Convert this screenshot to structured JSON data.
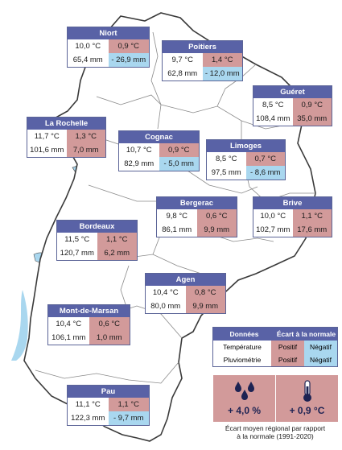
{
  "stations": [
    {
      "name": "Niort",
      "temp": "10,0 °C",
      "temp_dev": "0,9 °C",
      "temp_sign": "pos",
      "rain": "65,4 mm",
      "rain_dev": "- 26,9 mm",
      "rain_sign": "neg"
    },
    {
      "name": "Poitiers",
      "temp": "9,7 °C",
      "temp_dev": "1,4 °C",
      "temp_sign": "pos",
      "rain": "62,8 mm",
      "rain_dev": "- 12,0 mm",
      "rain_sign": "neg"
    },
    {
      "name": "Guéret",
      "temp": "8,5 °C",
      "temp_dev": "0,9 °C",
      "temp_sign": "pos",
      "rain": "108,4 mm",
      "rain_dev": "35,0 mm",
      "rain_sign": "pos"
    },
    {
      "name": "La Rochelle",
      "temp": "11,7 °C",
      "temp_dev": "1,3 °C",
      "temp_sign": "pos",
      "rain": "101,6 mm",
      "rain_dev": "7,0 mm",
      "rain_sign": "pos"
    },
    {
      "name": "Cognac",
      "temp": "10,7 °C",
      "temp_dev": "0,9 °C",
      "temp_sign": "pos",
      "rain": "82,9 mm",
      "rain_dev": "- 5,0 mm",
      "rain_sign": "neg"
    },
    {
      "name": "Limoges",
      "temp": "8,5 °C",
      "temp_dev": "0,7 °C",
      "temp_sign": "pos",
      "rain": "97,5 mm",
      "rain_dev": "- 8,6 mm",
      "rain_sign": "neg"
    },
    {
      "name": "Bergerac",
      "temp": "9,8 °C",
      "temp_dev": "0,6 °C",
      "temp_sign": "pos",
      "rain": "86,1 mm",
      "rain_dev": "9,9 mm",
      "rain_sign": "pos"
    },
    {
      "name": "Brive",
      "temp": "10,0 °C",
      "temp_dev": "1,1 °C",
      "temp_sign": "pos",
      "rain": "102,7 mm",
      "rain_dev": "17,6 mm",
      "rain_sign": "pos"
    },
    {
      "name": "Bordeaux",
      "temp": "11,5 °C",
      "temp_dev": "1,1 °C",
      "temp_sign": "pos",
      "rain": "120,7 mm",
      "rain_dev": "6,2 mm",
      "rain_sign": "pos"
    },
    {
      "name": "Agen",
      "temp": "10,4 °C",
      "temp_dev": "0,8 °C",
      "temp_sign": "pos",
      "rain": "80,0 mm",
      "rain_dev": "9,9 mm",
      "rain_sign": "pos"
    },
    {
      "name": "Mont-de-Marsan",
      "temp": "10,4 °C",
      "temp_dev": "0,6 °C",
      "temp_sign": "pos",
      "rain": "106,1 mm",
      "rain_dev": "1,0 mm",
      "rain_sign": "pos"
    },
    {
      "name": "Pau",
      "temp": "11,1 °C",
      "temp_dev": "1,1 °C",
      "temp_sign": "pos",
      "rain": "122,3 mm",
      "rain_dev": "- 9,7 mm",
      "rain_sign": "neg"
    }
  ],
  "legend": {
    "col_data": "Données",
    "col_dev": "Écart à la normale",
    "row_temp": "Température",
    "row_rain": "Pluviométrie",
    "positive": "Positif",
    "negative": "Négatif"
  },
  "summary": {
    "rain_dev": "+ 4,0 %",
    "temp_dev": "+ 0,9 °C",
    "caption_line1": "Écart moyen régional par rapport",
    "caption_line2": "à la normale (1991-2020)",
    "rain_icon": "raindrops-icon",
    "temp_icon": "thermometer-icon"
  },
  "colors": {
    "header": "#5962a6",
    "positive": "#d29a9a",
    "negative": "#a9d7ef",
    "sea": "#a9d7ef"
  }
}
